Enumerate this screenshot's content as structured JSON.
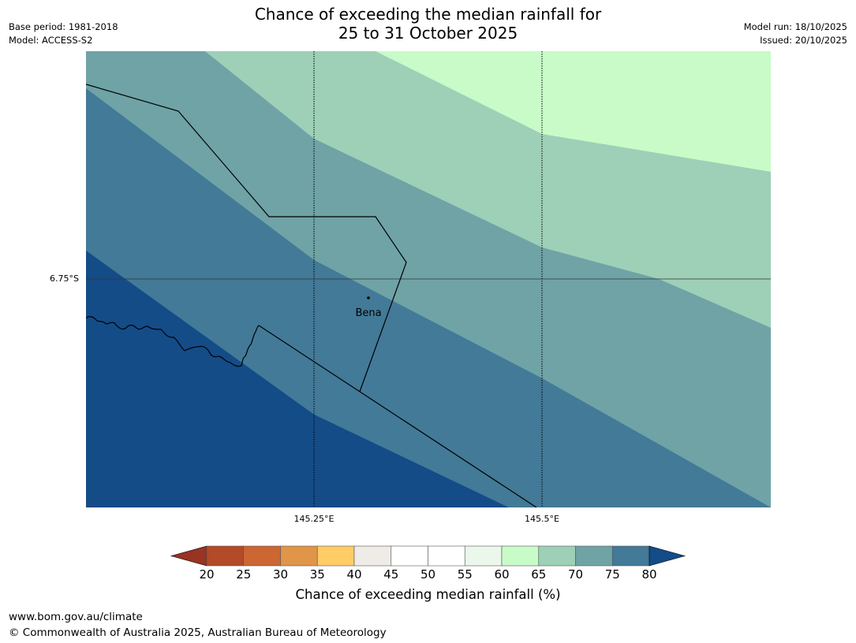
{
  "title_line1": "Chance of exceeding the median rainfall for",
  "title_line2": "25 to 31 October 2025",
  "meta_left": {
    "base_period": "Base period: 1981-2018",
    "model": "Model: ACCESS-S2"
  },
  "meta_right": {
    "model_run": "Model run: 18/10/2025",
    "issued": "Issued: 20/10/2025"
  },
  "axes": {
    "lat_label": "6.75°S",
    "lon_labels": [
      "145.25°E",
      "145.5°E"
    ]
  },
  "place": {
    "name": "Bena"
  },
  "colorbar": {
    "title": "Chance of exceeding median rainfall (%)",
    "ticks": [
      "20",
      "25",
      "30",
      "35",
      "40",
      "45",
      "50",
      "55",
      "60",
      "65",
      "70",
      "75",
      "80"
    ],
    "colors": {
      "below_20": "#993322",
      "20_25": "#b34a28",
      "25_30": "#cc6633",
      "30_35": "#e09548",
      "35_40": "#ffcc66",
      "40_45": "#efebe7",
      "45_50": "#ffffff",
      "50_55": "#ffffff",
      "55_60": "#eaf7ea",
      "60_65": "#c8fbc8",
      "65_70": "#9dd0b7",
      "70_75": "#6fa3a6",
      "75_80": "#427a98",
      "above_80": "#144c88"
    }
  },
  "footer": {
    "url": "www.bom.gov.au/climate",
    "copyright": "© Commonwealth of Australia 2025, Australian Bureau of Meteorology"
  }
}
